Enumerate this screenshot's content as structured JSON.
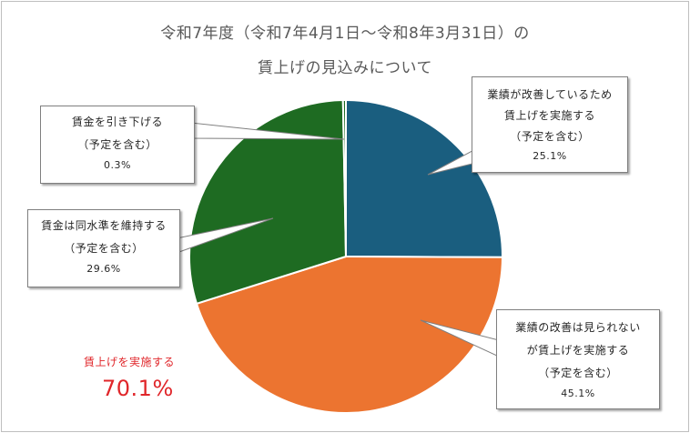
{
  "chart_data": {
    "type": "pie",
    "title_line1": "令和7年度（令和7年4月1日～令和8年3月31日）の",
    "title_line2": "賃上げの見込みについて",
    "slices": [
      {
        "label_lines": [
          "業績が改善しているため",
          "賃上げを実施する",
          "（予定を含む）"
        ],
        "value": 25.1,
        "value_label": "25.1%",
        "color": "#1a5e7f"
      },
      {
        "label_lines": [
          "業績の改善は見られない",
          "が賃上げを実施する",
          "（予定を含む）"
        ],
        "value": 45.1,
        "value_label": "45.1%",
        "color": "#ec7430"
      },
      {
        "label_lines": [
          "賃金は同水準を維持する",
          "（予定を含む）"
        ],
        "value": 29.6,
        "value_label": "29.6%",
        "color": "#1e6b22"
      },
      {
        "label_lines": [
          "賃金を引き下げる",
          "（予定を含む）"
        ],
        "value": 0.3,
        "value_label": "0.3%",
        "color": "#1e6b22"
      }
    ],
    "summary": {
      "label": "賃上げを実施する",
      "value": 70.1,
      "value_label": "70.1%",
      "color": "#e0262a"
    }
  }
}
